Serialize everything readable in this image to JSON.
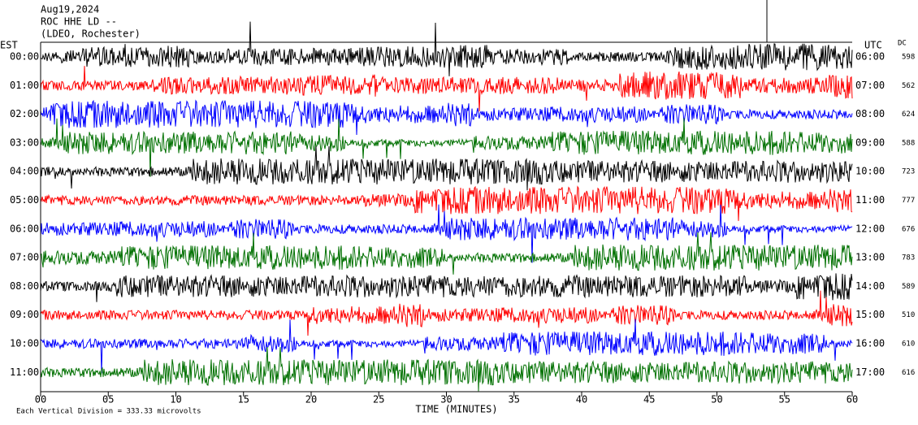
{
  "header": {
    "lines": [
      "Aug19,2024",
      "ROC HHE LD --",
      "(LDEO, Rochester)"
    ]
  },
  "left_label": "EST",
  "right_label": "UTC",
  "dc_label": "DC",
  "chart_data": {
    "type": "helicorder",
    "xlabel": "TIME (MINUTES)",
    "xlim": [
      0,
      60
    ],
    "xticks": [
      {
        "value": 0,
        "label": "00"
      },
      {
        "value": 5,
        "label": "05"
      },
      10,
      15,
      20,
      25,
      30,
      35,
      40,
      45,
      50,
      55,
      60
    ],
    "rows": [
      {
        "est": "00:00",
        "utc": "06:00",
        "dc": "598",
        "color": "#000000"
      },
      {
        "est": "01:00",
        "utc": "07:00",
        "dc": "562",
        "color": "#ff0000"
      },
      {
        "est": "02:00",
        "utc": "08:00",
        "dc": "624",
        "color": "#0000ff"
      },
      {
        "est": "03:00",
        "utc": "09:00",
        "dc": "588",
        "color": "#007000"
      },
      {
        "est": "04:00",
        "utc": "10:00",
        "dc": "723",
        "color": "#000000"
      },
      {
        "est": "05:00",
        "utc": "11:00",
        "dc": "777",
        "color": "#ff0000"
      },
      {
        "est": "06:00",
        "utc": "12:00",
        "dc": "676",
        "color": "#0000ff"
      },
      {
        "est": "07:00",
        "utc": "13:00",
        "dc": "783",
        "color": "#007000"
      },
      {
        "est": "08:00",
        "utc": "14:00",
        "dc": "589",
        "color": "#000000"
      },
      {
        "est": "09:00",
        "utc": "15:00",
        "dc": "510",
        "color": "#ff0000"
      },
      {
        "est": "10:00",
        "utc": "16:00",
        "dc": "610",
        "color": "#0000ff"
      },
      {
        "est": "11:00",
        "utc": "17:00",
        "dc": "616",
        "color": "#007000"
      }
    ]
  },
  "footer": "Each Vertical Division =  333.33 microvolts"
}
